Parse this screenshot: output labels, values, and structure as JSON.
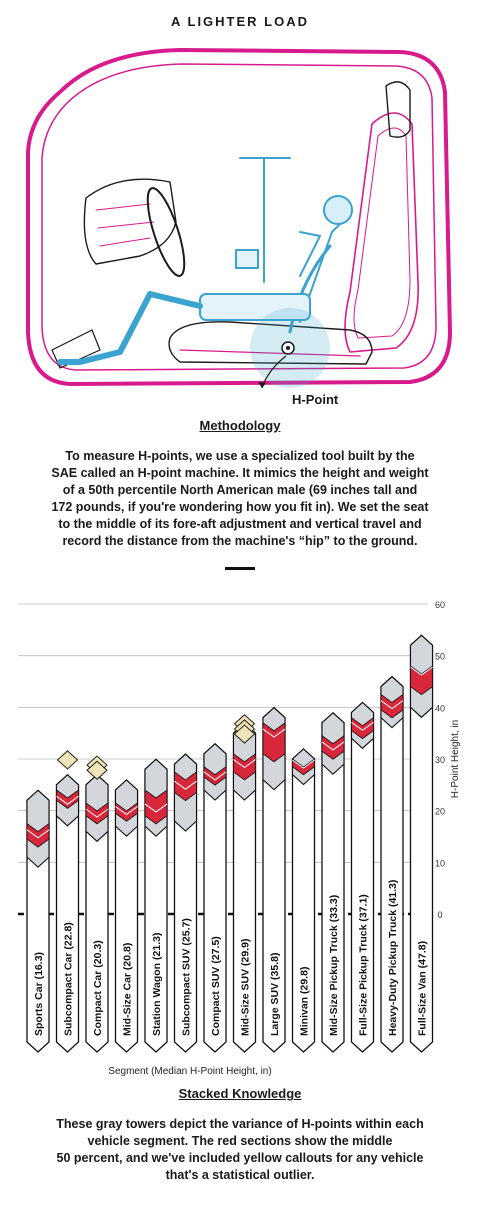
{
  "header": {
    "title": "A LIGHTER LOAD"
  },
  "illustration": {
    "hpoint_label": "H-Point",
    "colors": {
      "frame": "#d81b8c",
      "mannequin": "#3aa3cf",
      "outline": "#1b1b1b"
    }
  },
  "methodology": {
    "heading": "Methodology",
    "lines": [
      "To measure H-points, we use a specialized tool built by the",
      "SAE called an H-point machine. It mimics the height and weight",
      "of a 50th percentile North American male (69 inches tall and",
      "172 pounds, if you're wondering how you fit in). We set the seat",
      "to the middle of its fore-aft adjustment and vertical travel and",
      "record the distance from the machine's “hip” to the ground."
    ]
  },
  "chart_data": {
    "type": "bar",
    "ylabel": "H-Point Height, in",
    "xlabel": "Segment (Median H-Point Height, in)",
    "ylim": [
      0,
      60
    ],
    "yticks": [
      0,
      10,
      20,
      30,
      40,
      50,
      60
    ],
    "colors": {
      "tower": "#ffffff",
      "tower_shade": "#d3d7dc",
      "middle50": "#d8263a",
      "outlier": "#efe3b8"
    },
    "categories": [
      "Sports Car",
      "Subcompact Car",
      "Compact Car",
      "Mid-Size Car",
      "Station Wagon",
      "Subcompact SUV",
      "Compact SUV",
      "Mid-Size SUV",
      "Large SUV",
      "Minivan",
      "Mid-Size Pickup Truck",
      "Full-Size Pickup Truck",
      "Heavy-Duty Pickup Truck",
      "Full-Size Van"
    ],
    "medians": [
      16.3,
      22.8,
      20.3,
      20.8,
      21.3,
      25.7,
      27.5,
      29.9,
      35.8,
      29.8,
      33.3,
      37.1,
      41.3,
      47.8
    ],
    "max": [
      22,
      25,
      25,
      24,
      28,
      29,
      31,
      35,
      38,
      30,
      37,
      39,
      44,
      52
    ],
    "min": [
      11,
      19,
      16,
      17,
      17,
      18,
      24,
      24,
      26,
      27,
      29,
      34,
      38,
      40
    ],
    "q3": [
      17.5,
      24,
      21.5,
      21.5,
      24,
      27.5,
      28.5,
      31,
      37,
      30,
      34.5,
      38,
      42.5,
      48
    ],
    "q1": [
      14.5,
      22,
      19,
      19.5,
      19,
      23.5,
      26.5,
      27.5,
      31,
      28.5,
      31.5,
      35.5,
      39.5,
      44
    ],
    "outliers": [
      [],
      [
        27.5
      ],
      [
        26.5,
        25.5
      ],
      [],
      [],
      [],
      [],
      [
        34.5,
        33.5,
        32.5
      ],
      [],
      [],
      [],
      [],
      [],
      []
    ]
  },
  "stacked": {
    "heading": "Stacked Knowledge",
    "lines": [
      "These gray towers depict the variance of H-points within each",
      "vehicle segment. The red sections show the middle",
      "50 percent, and we've included yellow callouts for any vehicle",
      "that's a statistical outlier."
    ]
  }
}
